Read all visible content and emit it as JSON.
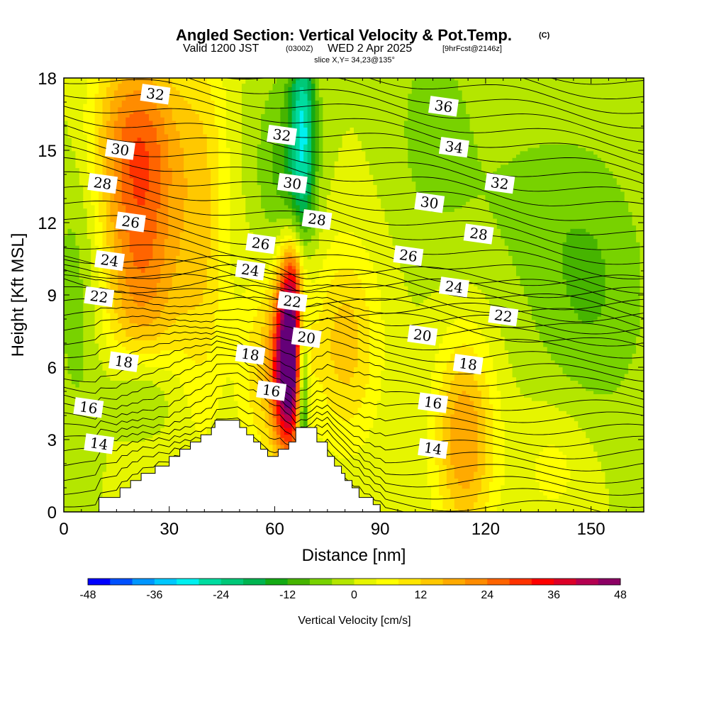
{
  "title": {
    "main": "Angled Section: Vertical Velocity & Pot.Temp.",
    "main_tag": "(C)",
    "valid_prefix": "Valid 1200 JST",
    "valid_z": "(0300Z)",
    "valid_date": "WED 2 Apr 2025",
    "valid_fcst": "[9hrFcst@2146z]",
    "slice": "slice X,Y= 34,23@135°"
  },
  "colors": {
    "palette": [
      "#0000ff",
      "#0050ff",
      "#0096ff",
      "#00c8ff",
      "#00f0f0",
      "#00dca0",
      "#00c878",
      "#00b450",
      "#14aa14",
      "#46b400",
      "#78d200",
      "#b4e600",
      "#e6f500",
      "#ffff00",
      "#ffe600",
      "#ffc800",
      "#ffaa00",
      "#ff8c00",
      "#ff6400",
      "#ff3200",
      "#ff0000",
      "#dc0028",
      "#b40050",
      "#8c0064",
      "#640078"
    ],
    "terrain": "#ffffff",
    "contour": "#000000"
  },
  "chart_data": {
    "type": "heatmap",
    "xlabel": "Distance [nm]",
    "ylabel": "Height [Kft MSL]",
    "xlim": [
      0,
      165
    ],
    "ylim": [
      0,
      18
    ],
    "xticks": [
      0,
      30,
      60,
      90,
      120,
      150
    ],
    "yticks": [
      0,
      3,
      6,
      9,
      12,
      15,
      18
    ],
    "colorbar": {
      "label": "Vertical Velocity [cm/s]",
      "min": -48,
      "max": 48,
      "step": 4,
      "tick_values": [
        -48,
        -36,
        -24,
        -12,
        0,
        12,
        24,
        36,
        48
      ]
    },
    "velocity_features": [
      {
        "x": 22,
        "y": 11,
        "sx": 9,
        "sy": 4.5,
        "value": 24
      },
      {
        "x": 20,
        "y": 16,
        "sx": 10,
        "sy": 2.5,
        "value": 14
      },
      {
        "x": 40,
        "y": 12,
        "sx": 5,
        "sy": 6,
        "value": 10
      },
      {
        "x": 64,
        "y": 6,
        "sx": 3,
        "sy": 2.5,
        "value": 55
      },
      {
        "x": 65,
        "y": 9.5,
        "sx": 2.5,
        "sy": 1.5,
        "value": 20
      },
      {
        "x": 57,
        "y": 6,
        "sx": 5,
        "sy": 3,
        "value": 12
      },
      {
        "x": 68,
        "y": 5,
        "sx": 1.2,
        "sy": 2.5,
        "value": -30
      },
      {
        "x": 68,
        "y": 16,
        "sx": 2.5,
        "sy": 3,
        "value": -24
      },
      {
        "x": 63,
        "y": 14,
        "sx": 6,
        "sy": 3,
        "value": -10
      },
      {
        "x": 22,
        "y": 5,
        "sx": 7,
        "sy": 1.5,
        "value": -12
      },
      {
        "x": 80,
        "y": 7,
        "sx": 7,
        "sy": 3,
        "value": 14
      },
      {
        "x": 114,
        "y": 3,
        "sx": 6,
        "sy": 3,
        "value": 20
      },
      {
        "x": 105,
        "y": 16,
        "sx": 8,
        "sy": 3,
        "value": -6
      },
      {
        "x": 130,
        "y": 13,
        "sx": 15,
        "sy": 3,
        "value": -4
      },
      {
        "x": 150,
        "y": 9,
        "sx": 12,
        "sy": 4,
        "value": -8
      },
      {
        "x": 140,
        "y": 2,
        "sx": 8,
        "sy": 2,
        "value": 6
      },
      {
        "x": 5,
        "y": 10,
        "sx": 6,
        "sy": 5,
        "value": -8
      }
    ],
    "terrain": [
      [
        0,
        0
      ],
      [
        10,
        0
      ],
      [
        10,
        0.6
      ],
      [
        16,
        0.6
      ],
      [
        16,
        1
      ],
      [
        19,
        1
      ],
      [
        19,
        1.3
      ],
      [
        22,
        1.3
      ],
      [
        22,
        1.6
      ],
      [
        26,
        1.6
      ],
      [
        26,
        1.9
      ],
      [
        30,
        1.9
      ],
      [
        30,
        2.3
      ],
      [
        33,
        2.3
      ],
      [
        33,
        2.6
      ],
      [
        36,
        2.6
      ],
      [
        36,
        2.9
      ],
      [
        39,
        2.9
      ],
      [
        39,
        3.2
      ],
      [
        42,
        3.2
      ],
      [
        42,
        3.5
      ],
      [
        43,
        3.5
      ],
      [
        43,
        3.8
      ],
      [
        50,
        3.8
      ],
      [
        50,
        3.5
      ],
      [
        52,
        3.5
      ],
      [
        52,
        3.2
      ],
      [
        54,
        3.2
      ],
      [
        54,
        2.9
      ],
      [
        56,
        2.9
      ],
      [
        56,
        2.6
      ],
      [
        58,
        2.6
      ],
      [
        58,
        2.3
      ],
      [
        61,
        2.3
      ],
      [
        61,
        2.6
      ],
      [
        64,
        2.6
      ],
      [
        64,
        2.9
      ],
      [
        66,
        2.9
      ],
      [
        66,
        3.5
      ],
      [
        72,
        3.5
      ],
      [
        72,
        2.9
      ],
      [
        75,
        2.9
      ],
      [
        75,
        2.3
      ],
      [
        77,
        2.3
      ],
      [
        77,
        1.9
      ],
      [
        79,
        1.9
      ],
      [
        79,
        1.6
      ],
      [
        80,
        1.6
      ],
      [
        80,
        1.3
      ],
      [
        82,
        1.3
      ],
      [
        82,
        1
      ],
      [
        84,
        1
      ],
      [
        84,
        0.6
      ],
      [
        88,
        0.6
      ],
      [
        88,
        0.3
      ],
      [
        90,
        0.3
      ],
      [
        90,
        0
      ]
    ],
    "theta_contours": [
      {
        "value": 14,
        "labels": [
          [
            10,
            2.8
          ],
          [
            105,
            2.6
          ]
        ]
      },
      {
        "value": 16,
        "labels": [
          [
            7,
            4.3
          ],
          [
            59,
            5
          ],
          [
            105,
            4.5
          ]
        ]
      },
      {
        "value": 18,
        "labels": [
          [
            17,
            6.2
          ],
          [
            53,
            6.5
          ],
          [
            115,
            6.1
          ]
        ]
      },
      {
        "value": 20,
        "labels": [
          [
            69,
            7.2
          ],
          [
            102,
            7.3
          ]
        ]
      },
      {
        "value": 22,
        "labels": [
          [
            10,
            8.9
          ],
          [
            65,
            8.7
          ],
          [
            125,
            8.1
          ]
        ]
      },
      {
        "value": 24,
        "labels": [
          [
            13,
            10.4
          ],
          [
            53,
            10
          ],
          [
            111,
            9.3
          ]
        ]
      },
      {
        "value": 26,
        "labels": [
          [
            19,
            12
          ],
          [
            56,
            11.1
          ],
          [
            98,
            10.6
          ]
        ]
      },
      {
        "value": 28,
        "labels": [
          [
            11,
            13.6
          ],
          [
            72,
            12.1
          ],
          [
            118,
            11.5
          ]
        ]
      },
      {
        "value": 30,
        "labels": [
          [
            16,
            15
          ],
          [
            65,
            13.6
          ],
          [
            104,
            12.8
          ]
        ]
      },
      {
        "value": 32,
        "labels": [
          [
            26,
            17.3
          ],
          [
            62,
            15.6
          ],
          [
            124,
            13.6
          ]
        ]
      },
      {
        "value": 34,
        "labels": [
          [
            111,
            15.1
          ]
        ]
      },
      {
        "value": 36,
        "labels": [
          [
            108,
            16.8
          ]
        ]
      }
    ]
  }
}
